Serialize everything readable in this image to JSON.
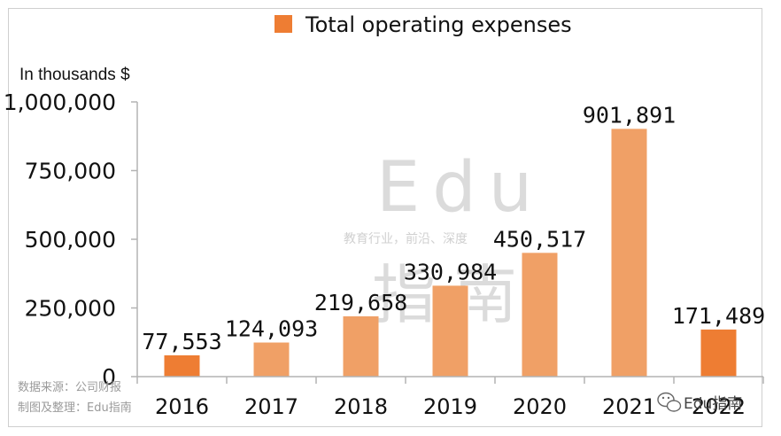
{
  "chart_data": {
    "type": "bar",
    "title": "",
    "legend": "Total operating expenses",
    "ylabel": "In thousands $",
    "xlabel": "",
    "categories": [
      "2016",
      "2017",
      "2018",
      "2019",
      "2020",
      "2021",
      "2022"
    ],
    "values": [
      77553,
      124093,
      219658,
      330984,
      450517,
      901891,
      171489
    ],
    "data_labels": [
      "77,553",
      "124,093",
      "219,658",
      "330,984",
      "450,517",
      "901,891",
      "171,489"
    ],
    "ylim": [
      0,
      1000000
    ],
    "yticks": [
      0,
      250000,
      500000,
      750000,
      1000000
    ],
    "ytick_labels": [
      "0",
      "250,000",
      "500,000",
      "750,000",
      "1,000,000"
    ],
    "grid": false,
    "legend_position": "top-center",
    "colors": {
      "bar_default": "#f0a066",
      "bar_highlight": "#ee7d33",
      "axis": "#b3b3b3"
    },
    "highlighted_categories": [
      "2016",
      "2022"
    ]
  },
  "watermark": {
    "title": "Edu",
    "subtitle": "教育行业，前沿、深度",
    "name": "指南"
  },
  "source": {
    "line1": "数据来源：公司财报",
    "line2": "制图及整理：Edu指南"
  },
  "brand": {
    "label": "Edu指南",
    "icon": "wechat-icon"
  }
}
